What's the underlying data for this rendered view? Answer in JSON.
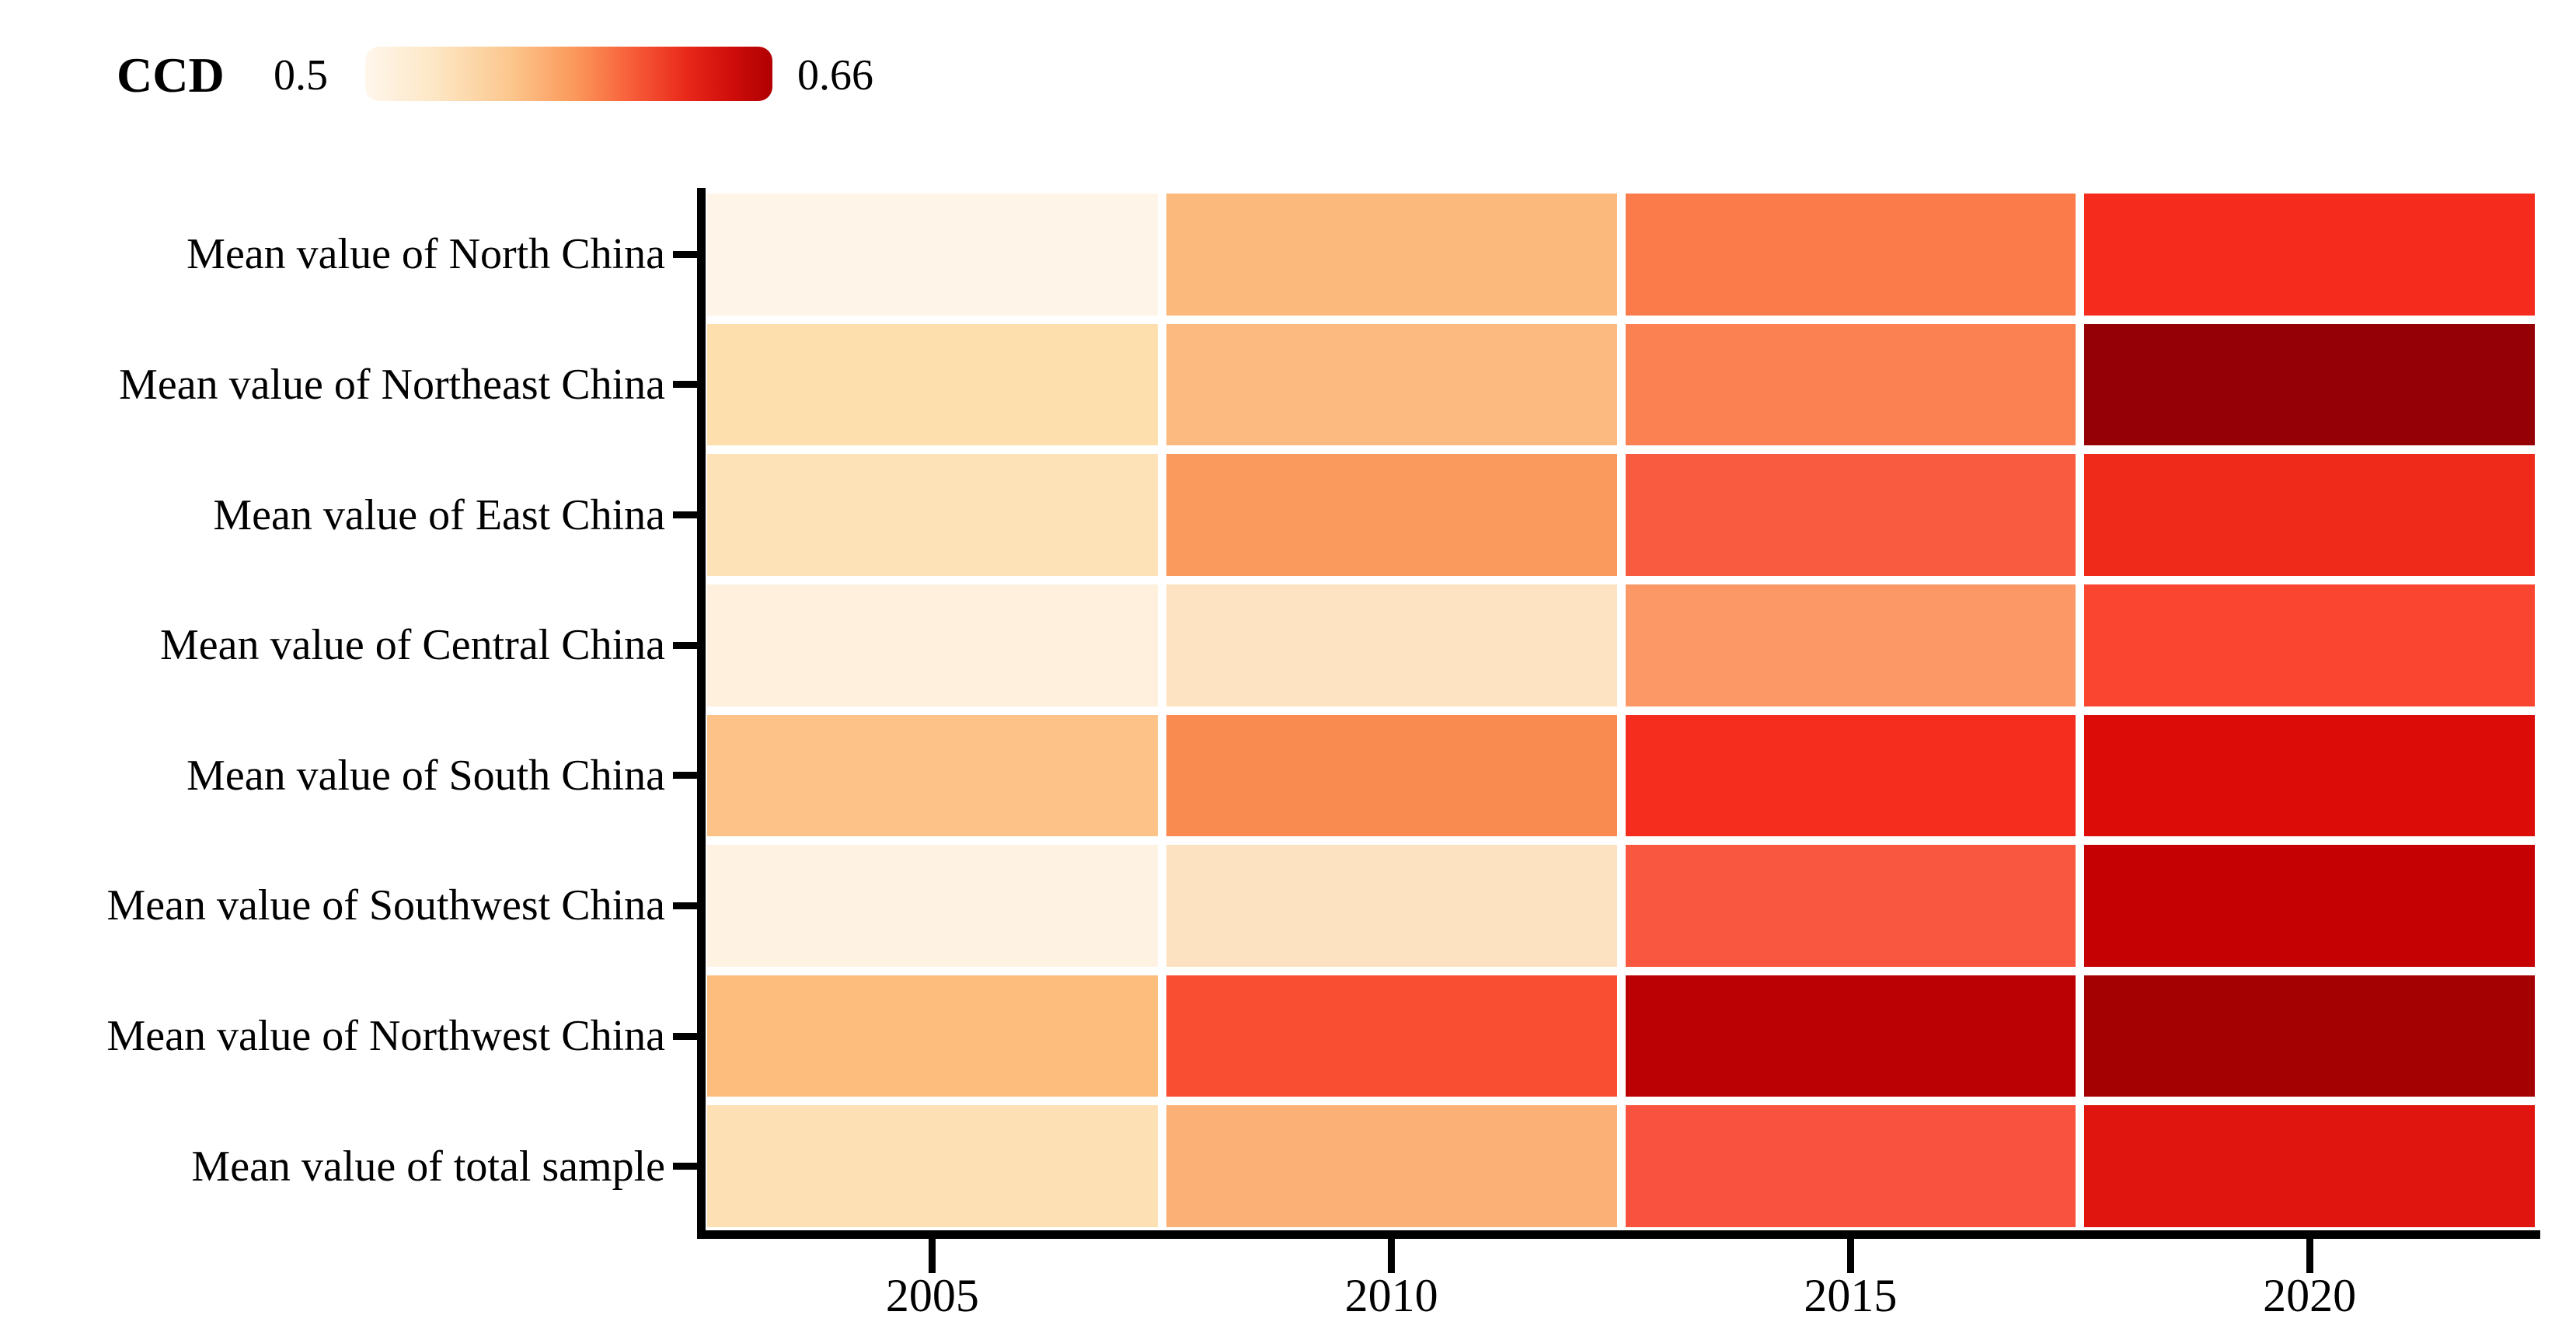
{
  "legend": {
    "title": "CCD",
    "min_label": "0.5",
    "max_label": "0.66",
    "gradient_stops": [
      "#FFF7EC 0%",
      "#FDE5C2 18%",
      "#FCC68C 36%",
      "#FB9659 52%",
      "#F75B38 66%",
      "#E8281A 79%",
      "#CF0D0B 90%",
      "#B00002 100%"
    ]
  },
  "chart_data": {
    "type": "heatmap",
    "title": "",
    "xlabel": "",
    "ylabel": "",
    "colorbar": {
      "label": "CCD",
      "min": 0.5,
      "max": 0.66,
      "colormap": "OrRd"
    },
    "x": [
      "2005",
      "2010",
      "2015",
      "2020"
    ],
    "y": [
      "Mean value of North China",
      "Mean value of Northeast China",
      "Mean value of East China",
      "Mean value of Central China",
      "Mean value of South China",
      "Mean value of Southwest China",
      "Mean value of Northwest China",
      "Mean value of total sample"
    ],
    "values_note": "CCD values estimated from cell colors against the 0.5-0.66 colorbar",
    "values": [
      [
        0.506,
        0.562,
        0.589,
        0.616
      ],
      [
        0.53,
        0.561,
        0.588,
        0.651
      ],
      [
        0.526,
        0.574,
        0.604,
        0.617
      ],
      [
        0.51,
        0.525,
        0.575,
        0.611
      ],
      [
        0.555,
        0.581,
        0.615,
        0.624
      ],
      [
        0.508,
        0.525,
        0.605,
        0.63
      ],
      [
        0.559,
        0.609,
        0.632,
        0.646
      ],
      [
        0.528,
        0.564,
        0.606,
        0.622
      ]
    ],
    "cell_colors": [
      [
        "#FEF4E8",
        "#FCB97C",
        "#FB7B4B",
        "#F42B1D"
      ],
      [
        "#FDDFAE",
        "#FCBA80",
        "#FB8052",
        "#950007"
      ],
      [
        "#FDE2B8",
        "#FA9A5D",
        "#F95B40",
        "#F02A1B"
      ],
      [
        "#FEF0DC",
        "#FDE3C1",
        "#FB9865",
        "#FA4530"
      ],
      [
        "#FCC287",
        "#F98B51",
        "#F42D1E",
        "#DC0D08"
      ],
      [
        "#FEF2E2",
        "#FDE2C1",
        "#F95740",
        "#C60103"
      ],
      [
        "#FCBD7D",
        "#F94E32",
        "#BC0105",
        "#A40102"
      ],
      [
        "#FDE0B4",
        "#FBB175",
        "#F95340",
        "#E0150F"
      ]
    ],
    "layout": {
      "legend_position": "top-left",
      "grid_lines": false,
      "cell_gap_color": "#FFFFFF",
      "axis_color": "#000000",
      "axes_shown": [
        "left",
        "bottom"
      ]
    }
  }
}
